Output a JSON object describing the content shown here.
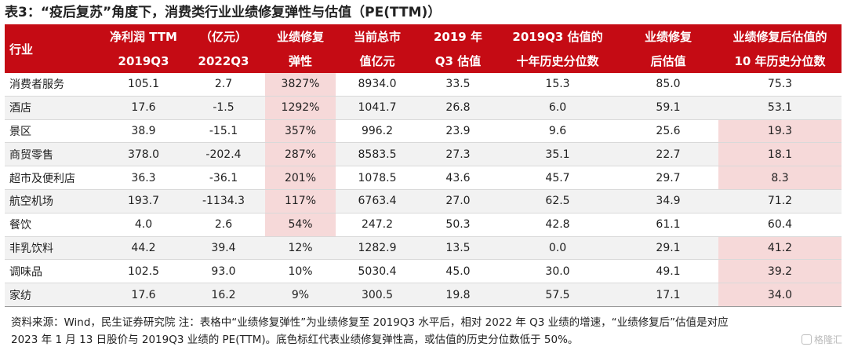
{
  "title": "表3：“疫后复苏”角度下，消费类行业业绩修复弹性与估值（PE(TTM)）",
  "header_row1": [
    "行业",
    "净利润 TTM",
    "（亿元）",
    "业绩修复",
    "当前总市",
    "2019 年",
    "2019Q3 估值的",
    "业绩修复",
    "业绩修复后估值的"
  ],
  "header_row2": [
    "2019Q3",
    "2022Q3",
    "弹性",
    "值亿元",
    "Q3 估值",
    "十年历史分位数",
    "后估值",
    "10 年历史分位数"
  ],
  "chart_data": {
    "type": "table",
    "columns": [
      "行业",
      "净利润TTM 2019Q3 (亿元)",
      "净利润TTM 2022Q3 (亿元)",
      "业绩修复弹性",
      "当前总市值(亿元)",
      "2019年Q3估值",
      "2019Q3估值的十年历史分位数",
      "业绩修复后估值",
      "业绩修复后估值的10年历史分位数"
    ],
    "rows": [
      [
        "消费者服务",
        "105.1",
        "2.7",
        "3827%",
        "8934.0",
        "33.5",
        "15.3",
        "85.0",
        "75.3"
      ],
      [
        "酒店",
        "17.6",
        "-1.5",
        "1292%",
        "1041.7",
        "26.8",
        "6.0",
        "59.1",
        "53.1"
      ],
      [
        "景区",
        "38.9",
        "-15.1",
        "357%",
        "996.2",
        "23.9",
        "9.6",
        "25.6",
        "19.3"
      ],
      [
        "商贸零售",
        "378.0",
        "-202.4",
        "287%",
        "8583.5",
        "27.3",
        "35.1",
        "22.7",
        "18.1"
      ],
      [
        "超市及便利店",
        "36.3",
        "-36.1",
        "201%",
        "1078.5",
        "43.6",
        "45.7",
        "29.7",
        "8.3"
      ],
      [
        "航空机场",
        "193.7",
        "-1134.3",
        "117%",
        "6763.4",
        "27.0",
        "62.5",
        "34.9",
        "71.2"
      ],
      [
        "餐饮",
        "4.0",
        "2.6",
        "54%",
        "247.2",
        "50.3",
        "42.8",
        "61.1",
        "60.4"
      ],
      [
        "非乳饮料",
        "44.2",
        "39.4",
        "12%",
        "1282.9",
        "13.5",
        "0.0",
        "29.1",
        "41.2"
      ],
      [
        "调味品",
        "102.5",
        "93.0",
        "10%",
        "5030.4",
        "45.0",
        "30.0",
        "49.1",
        "39.2"
      ],
      [
        "家纺",
        "17.6",
        "16.2",
        "9%",
        "300.5",
        "19.8",
        "57.5",
        "17.1",
        "34.0"
      ]
    ],
    "highlighted_cells": [
      [
        0,
        3
      ],
      [
        1,
        3
      ],
      [
        2,
        3
      ],
      [
        3,
        3
      ],
      [
        4,
        3
      ],
      [
        5,
        3
      ],
      [
        6,
        3
      ],
      [
        2,
        8
      ],
      [
        3,
        8
      ],
      [
        4,
        8
      ],
      [
        7,
        8
      ],
      [
        8,
        8
      ],
      [
        9,
        8
      ]
    ],
    "highlight_color": "#f6d9d9",
    "header_color": "#c50b14",
    "stripe_color": "#f2f2f2"
  },
  "notes": [
    "资料来源：Wind，民生证券研究院 注：表格中“业绩修复弹性”为业绩修复至 2019Q3 水平后，相对 2022 年 Q3 业绩的增速，“业绩修复后”估值是对应",
    "2023 年 1 月 13 日股价与 2019Q3 业绩的 PE(TTM)。底色标红代表业绩修复弹性高，或估值的历史分位数低于 50%。"
  ],
  "watermark": {
    "icon": "gelonghui-logo-icon",
    "text": "格隆汇"
  }
}
